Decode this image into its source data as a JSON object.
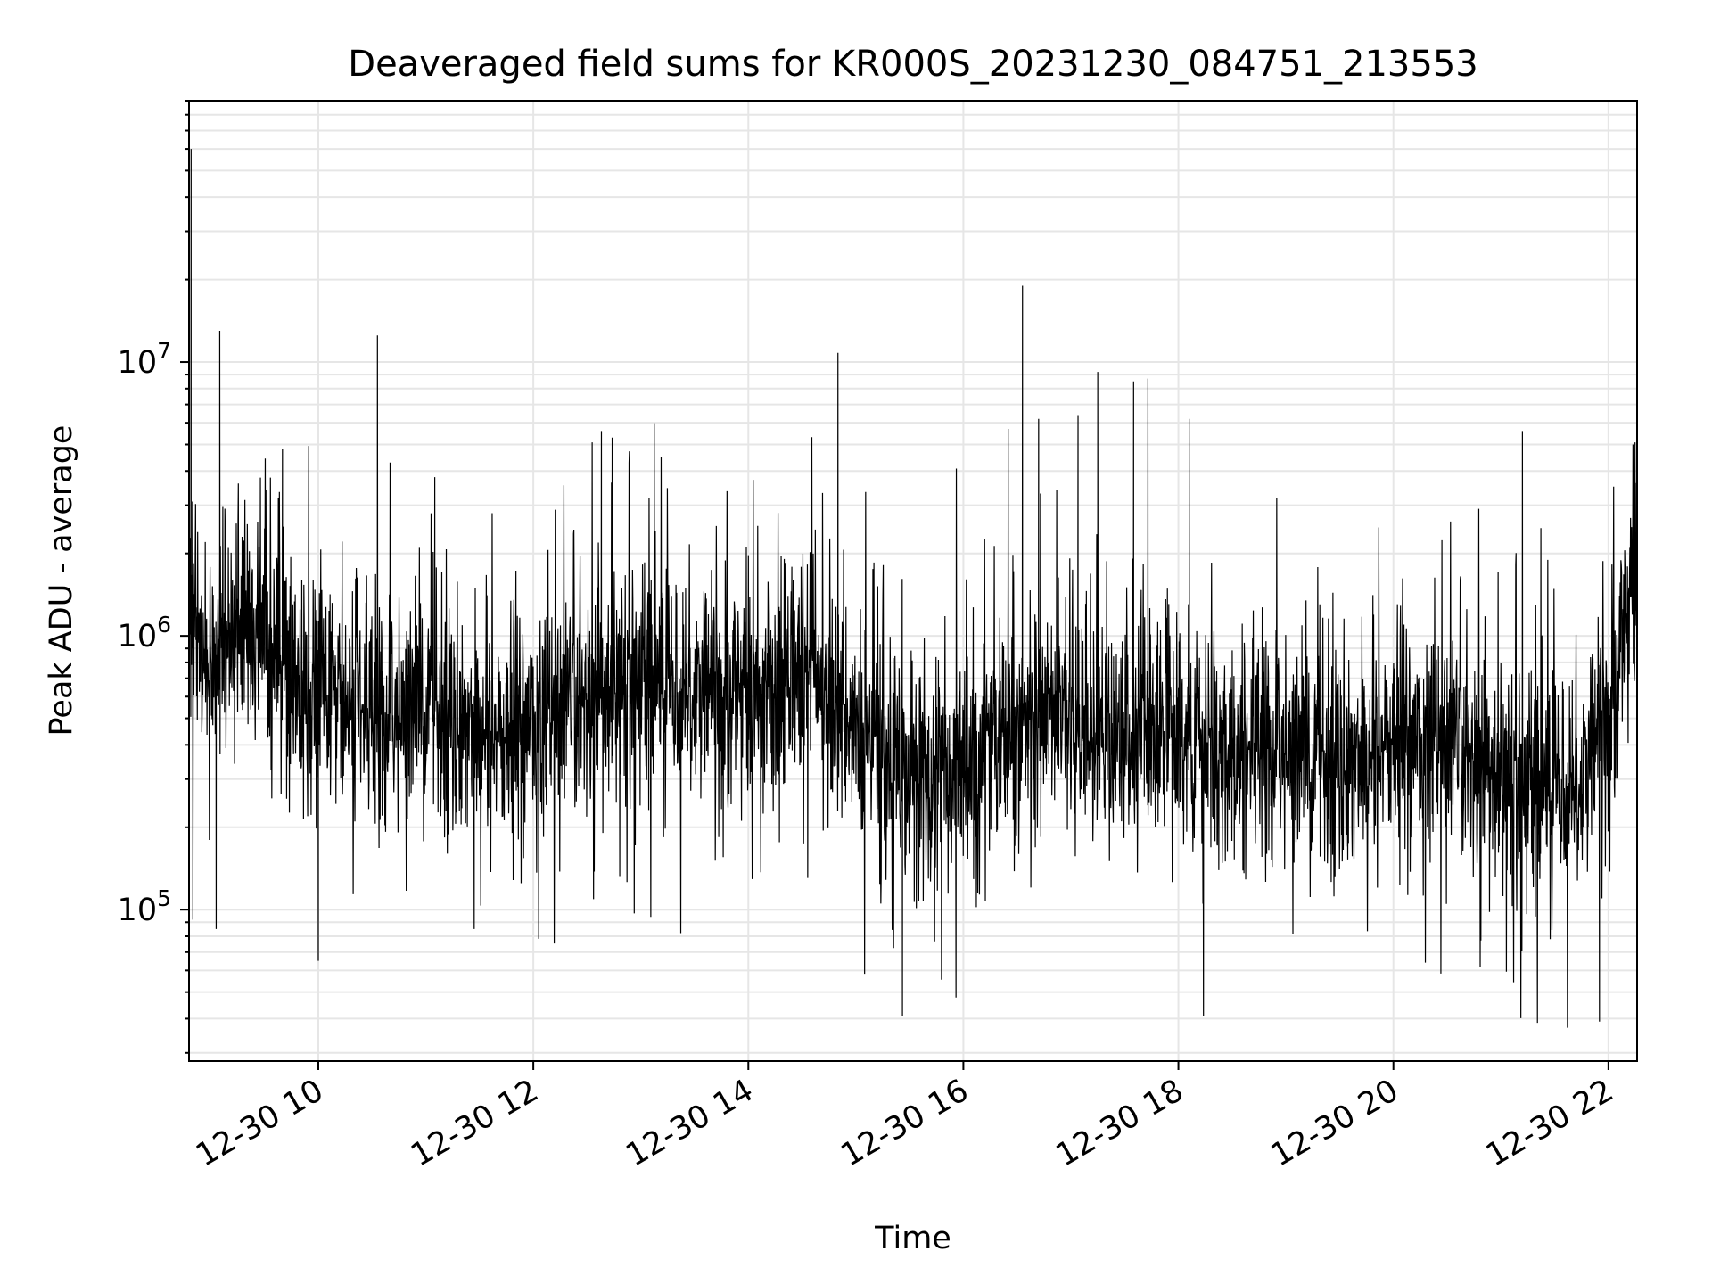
{
  "chart_data": {
    "type": "line",
    "title": "Deaveraged field sums for KR000S_20231230_084751_213553",
    "xlabel": "Time",
    "ylabel": "Peak ADU - average",
    "yscale": "log",
    "grid": true,
    "line_color": "#000000",
    "grid_color": "#e6e6e6",
    "xlim": [
      "12-30 08:47:51",
      "12-30 22:16:00"
    ],
    "ylim": [
      28000,
      90000000
    ],
    "x_ticks": [
      {
        "value": "12-30 10:00",
        "label": "12-30 10"
      },
      {
        "value": "12-30 12:00",
        "label": "12-30 12"
      },
      {
        "value": "12-30 14:00",
        "label": "12-30 14"
      },
      {
        "value": "12-30 16:00",
        "label": "12-30 16"
      },
      {
        "value": "12-30 18:00",
        "label": "12-30 18"
      },
      {
        "value": "12-30 20:00",
        "label": "12-30 20"
      },
      {
        "value": "12-30 22:00",
        "label": "12-30 22"
      }
    ],
    "y_ticks": [
      {
        "value": 100000,
        "base": "10",
        "exp": "5"
      },
      {
        "value": 1000000,
        "base": "10",
        "exp": "6"
      },
      {
        "value": 10000000,
        "base": "10",
        "exp": "7"
      }
    ],
    "series": [
      {
        "x": [
          "12-30 08:48",
          "12-30 09:00",
          "12-30 09:15",
          "12-30 09:30",
          "12-30 09:45",
          "12-30 10:00",
          "12-30 10:15",
          "12-30 10:30",
          "12-30 10:45",
          "12-30 11:00",
          "12-30 11:15",
          "12-30 11:30",
          "12-30 11:45",
          "12-30 12:00",
          "12-30 12:15",
          "12-30 12:30",
          "12-30 12:45",
          "12-30 13:00",
          "12-30 13:15",
          "12-30 13:30",
          "12-30 13:45",
          "12-30 14:00",
          "12-30 14:15",
          "12-30 14:30",
          "12-30 14:45",
          "12-30 15:00",
          "12-30 15:15",
          "12-30 15:30",
          "12-30 15:45",
          "12-30 16:00",
          "12-30 16:15",
          "12-30 16:30",
          "12-30 16:45",
          "12-30 17:00",
          "12-30 17:15",
          "12-30 17:30",
          "12-30 17:45",
          "12-30 18:00",
          "12-30 18:15",
          "12-30 18:30",
          "12-30 18:45",
          "12-30 19:00",
          "12-30 19:15",
          "12-30 19:30",
          "12-30 19:45",
          "12-30 20:00",
          "12-30 20:15",
          "12-30 20:30",
          "12-30 20:45",
          "12-30 21:00",
          "12-30 21:15",
          "12-30 21:30",
          "12-30 21:45",
          "12-30 22:00",
          "12-30 22:15"
        ],
        "y": [
          1100000,
          900000,
          1000000,
          1100000,
          700000,
          600000,
          550000,
          500000,
          520000,
          600000,
          500000,
          450000,
          420000,
          480000,
          500000,
          550000,
          650000,
          750000,
          700000,
          650000,
          600000,
          650000,
          650000,
          700000,
          700000,
          450000,
          350000,
          300000,
          300000,
          320000,
          400000,
          450000,
          500000,
          500000,
          450000,
          420000,
          450000,
          420000,
          400000,
          380000,
          380000,
          380000,
          370000,
          360000,
          360000,
          420000,
          400000,
          380000,
          330000,
          300000,
          300000,
          300000,
          310000,
          500000,
          1700000
        ]
      }
    ],
    "spikes": [
      {
        "x": "12-30 08:49",
        "y": 60000000
      },
      {
        "x": "12-30 09:05",
        "y": 13000000
      },
      {
        "x": "12-30 09:40",
        "y": 4800000
      },
      {
        "x": "12-30 10:33",
        "y": 12500000
      },
      {
        "x": "12-30 11:05",
        "y": 3800000
      },
      {
        "x": "12-30 12:38",
        "y": 5600000
      },
      {
        "x": "12-30 12:44",
        "y": 5300000
      },
      {
        "x": "12-30 14:50",
        "y": 10800000
      },
      {
        "x": "12-30 16:25",
        "y": 5700000
      },
      {
        "x": "12-30 16:33",
        "y": 19000000
      },
      {
        "x": "12-30 16:42",
        "y": 6200000
      },
      {
        "x": "12-30 17:04",
        "y": 6400000
      },
      {
        "x": "12-30 17:15",
        "y": 9200000
      },
      {
        "x": "12-30 17:35",
        "y": 8500000
      },
      {
        "x": "12-30 17:43",
        "y": 8700000
      },
      {
        "x": "12-30 18:06",
        "y": 6200000
      },
      {
        "x": "12-30 21:12",
        "y": 5600000
      }
    ],
    "dips": [
      {
        "x": "12-30 08:50",
        "y": 92000
      },
      {
        "x": "12-30 09:03",
        "y": 85000
      },
      {
        "x": "12-30 10:00",
        "y": 65000
      },
      {
        "x": "12-30 11:27",
        "y": 85000
      },
      {
        "x": "12-30 15:26",
        "y": 41000
      },
      {
        "x": "12-30 18:14",
        "y": 41000
      },
      {
        "x": "12-30 21:55",
        "y": 39000
      }
    ]
  }
}
